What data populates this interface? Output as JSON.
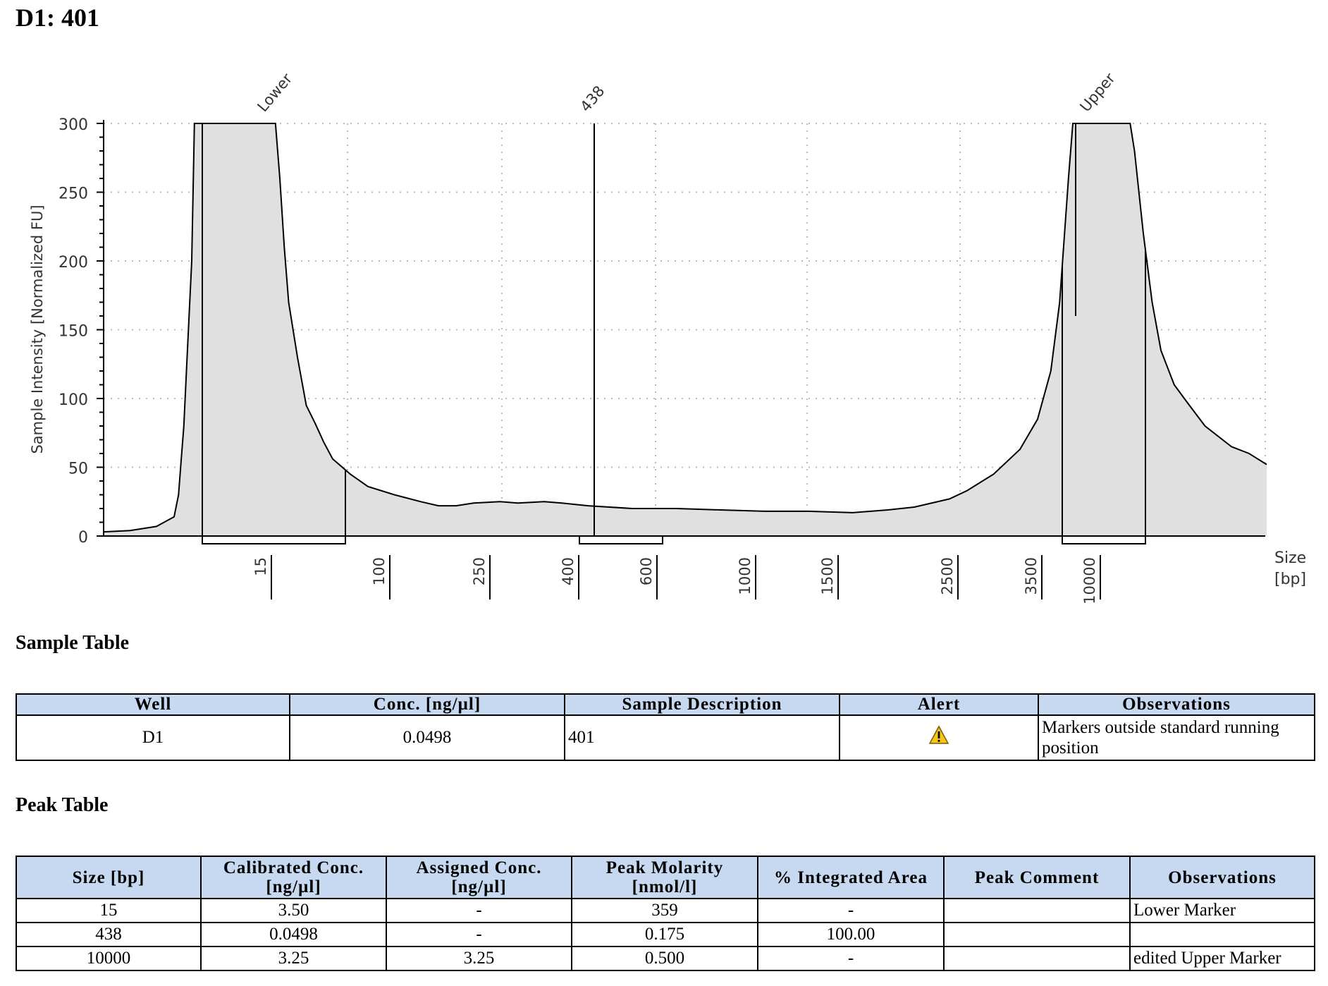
{
  "page_title": "D1: 401",
  "colors": {
    "table_header_bg": "#c6d9f1",
    "peak_fill": "#e0e0e0",
    "trace": "#000000",
    "grid": "#bbbbbb",
    "alert_icon": "#f5c518"
  },
  "chart_data": {
    "type": "area",
    "title": "",
    "ylabel": "Sample Intensity [Normalized FU]",
    "xlabel": "Size\n[bp]",
    "xlabel_line1": "Size",
    "xlabel_line2": "[bp]",
    "ylim": [
      0,
      300
    ],
    "y_ticks": [
      "0",
      "50",
      "100",
      "150",
      "200",
      "250",
      "300"
    ],
    "x_ticks": [
      "15",
      "100",
      "250",
      "400",
      "600",
      "1000",
      "1500",
      "2500",
      "3500",
      "10000"
    ],
    "grid": true,
    "peak_labels": [
      "Lower",
      "438",
      "Upper"
    ],
    "trace_points": [
      [
        0,
        3
      ],
      [
        0.03,
        4
      ],
      [
        0.06,
        7
      ],
      [
        0.08,
        14
      ],
      [
        0.085,
        30
      ],
      [
        0.088,
        55
      ],
      [
        0.091,
        80
      ],
      [
        0.094,
        120
      ],
      [
        0.1,
        200
      ],
      [
        0.103,
        300
      ],
      [
        0.195,
        300
      ],
      [
        0.2,
        260
      ],
      [
        0.205,
        210
      ],
      [
        0.21,
        170
      ],
      [
        0.22,
        130
      ],
      [
        0.23,
        95
      ],
      [
        0.24,
        82
      ],
      [
        0.25,
        68
      ],
      [
        0.26,
        56
      ],
      [
        0.28,
        45
      ],
      [
        0.3,
        36
      ],
      [
        0.33,
        30
      ],
      [
        0.36,
        25
      ],
      [
        0.38,
        22
      ],
      [
        0.4,
        22
      ],
      [
        0.42,
        24
      ],
      [
        0.45,
        25
      ],
      [
        0.47,
        24
      ],
      [
        0.5,
        25
      ],
      [
        0.52,
        24
      ],
      [
        0.55,
        22
      ],
      [
        0.6,
        20
      ],
      [
        0.65,
        20
      ],
      [
        0.7,
        19
      ],
      [
        0.75,
        18
      ],
      [
        0.8,
        18
      ],
      [
        0.85,
        17
      ],
      [
        0.89,
        19
      ],
      [
        0.92,
        21
      ],
      [
        0.96,
        27
      ],
      [
        0.98,
        33
      ],
      [
        1.01,
        45
      ],
      [
        1.04,
        63
      ],
      [
        1.06,
        85
      ],
      [
        1.075,
        120
      ],
      [
        1.085,
        170
      ],
      [
        1.095,
        260
      ],
      [
        1.1,
        300
      ],
      [
        1.165,
        300
      ],
      [
        1.17,
        280
      ],
      [
        1.18,
        220
      ],
      [
        1.19,
        170
      ],
      [
        1.2,
        135
      ],
      [
        1.215,
        110
      ],
      [
        1.23,
        97
      ],
      [
        1.25,
        80
      ],
      [
        1.28,
        65
      ],
      [
        1.3,
        60
      ],
      [
        1.32,
        52
      ]
    ],
    "marked_regions": [
      {
        "label": "Lower",
        "from_size": "≈13",
        "to_size": "≈80"
      },
      {
        "label": "438",
        "from_size": "≈400",
        "to_size": "≈600"
      },
      {
        "label": "Upper",
        "from_size": "≈9000",
        "to_size": "≈12000"
      }
    ]
  },
  "sample_table": {
    "heading": "Sample Table",
    "columns": [
      "Well",
      "Conc. [ng/µl]",
      "Sample Description",
      "Alert",
      "Observations"
    ],
    "rows": [
      {
        "well": "D1",
        "conc": "0.0498",
        "description": "401",
        "alert": "warning-icon",
        "observations": "Markers outside standard running position"
      }
    ]
  },
  "peak_table": {
    "heading": "Peak Table",
    "columns": [
      [
        "Size [bp]"
      ],
      [
        "Calibrated Conc.",
        "[ng/µl]"
      ],
      [
        "Assigned Conc.",
        "[ng/µl]"
      ],
      [
        "Peak Molarity",
        "[nmol/l]"
      ],
      [
        "% Integrated Area"
      ],
      [
        "Peak Comment"
      ],
      [
        "Observations"
      ]
    ],
    "rows": [
      [
        "15",
        "3.50",
        "-",
        "359",
        "-",
        "",
        "Lower Marker"
      ],
      [
        "438",
        "0.0498",
        "-",
        "0.175",
        "100.00",
        "",
        ""
      ],
      [
        "10000",
        "3.25",
        "3.25",
        "0.500",
        "-",
        "",
        "edited Upper Marker"
      ]
    ]
  }
}
